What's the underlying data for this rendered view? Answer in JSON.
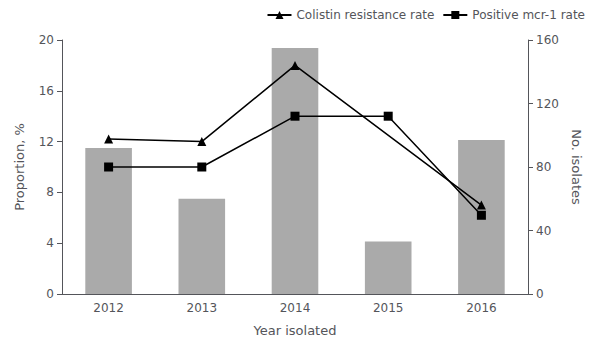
{
  "chart_data": {
    "type": "bar",
    "categories": [
      "2012",
      "2013",
      "2014",
      "2015",
      "2016"
    ],
    "xlabel": "Year isolated",
    "ylabel": "Proportion, %",
    "y2label": "No. isolates",
    "ylim": [
      0,
      20
    ],
    "yticks": [
      0,
      4,
      8,
      12,
      16,
      20
    ],
    "y2lim": [
      0,
      160
    ],
    "y2ticks": [
      0,
      40,
      80,
      120,
      160
    ],
    "grid": false,
    "legend": "upper right",
    "series": [
      {
        "type": "bar",
        "axis": "y2",
        "color": "#aaaaaa",
        "values": [
          92,
          60,
          155,
          33,
          97
        ]
      },
      {
        "name": "Colistin resistance rate",
        "type": "line",
        "color": "#000000",
        "marker": "triangle",
        "values": [
          12.2,
          12.0,
          18.0,
          null,
          7.0
        ]
      },
      {
        "name": "Positive mcr-1 rate",
        "type": "line",
        "color": "#000000",
        "marker": "square",
        "values": [
          10.0,
          10.0,
          14.0,
          14.0,
          6.2
        ]
      }
    ]
  }
}
